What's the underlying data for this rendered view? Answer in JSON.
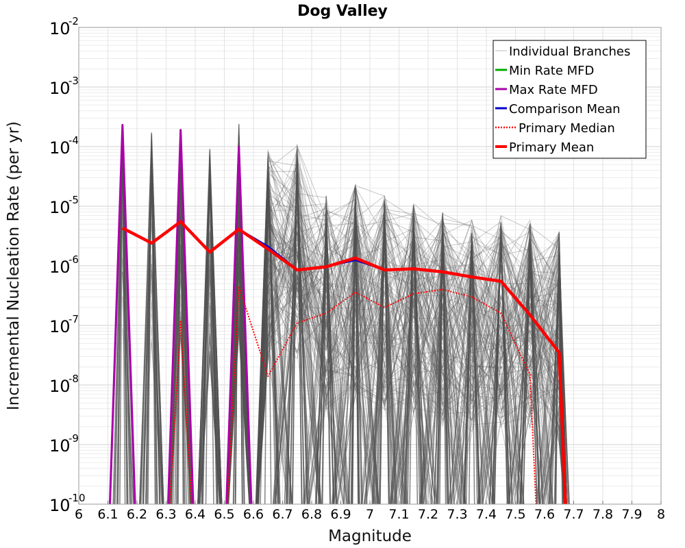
{
  "chart_data": {
    "type": "line",
    "title": "Dog Valley",
    "xlabel": "Magnitude",
    "ylabel": "Incremental Nucleation Rate (per yr)",
    "xlim": [
      6,
      8
    ],
    "ylim": [
      1e-10,
      0.01
    ],
    "yscale": "log",
    "grid": true,
    "legend_position": "top-right",
    "x_ticks": [
      "6",
      "6.1",
      "6.2",
      "6.3",
      "6.4",
      "6.5",
      "6.6",
      "6.7",
      "6.8",
      "6.9",
      "7",
      "7.1",
      "7.2",
      "7.3",
      "7.4",
      "7.5",
      "7.6",
      "7.7",
      "7.8",
      "7.9",
      "8"
    ],
    "y_ticks": [
      {
        "base": "10",
        "exp": "-2"
      },
      {
        "base": "10",
        "exp": "-3"
      },
      {
        "base": "10",
        "exp": "-4"
      },
      {
        "base": "10",
        "exp": "-5"
      },
      {
        "base": "10",
        "exp": "-6"
      },
      {
        "base": "10",
        "exp": "-7"
      },
      {
        "base": "10",
        "exp": "-8"
      },
      {
        "base": "10",
        "exp": "-9"
      },
      {
        "base": "10",
        "exp": "-10"
      }
    ],
    "series": [
      {
        "name": "Individual Branches",
        "color": "#555555",
        "style": "thin",
        "note_values": "many overlapping branch curves; peaks at each bin",
        "peaks": [
          {
            "x": 6.15,
            "y": 0.00022
          },
          {
            "x": 6.25,
            "y": 0.0002
          },
          {
            "x": 6.35,
            "y": 0.0002
          },
          {
            "x": 6.45,
            "y": 0.0001
          },
          {
            "x": 6.55,
            "y": 0.00027
          },
          {
            "x": 6.65,
            "y": 0.0001
          },
          {
            "x": 6.75,
            "y": 0.00011
          },
          {
            "x": 6.85,
            "y": 1.5e-05
          },
          {
            "x": 6.95,
            "y": 2.5e-05
          },
          {
            "x": 7.05,
            "y": 1.5e-05
          },
          {
            "x": 7.15,
            "y": 1.2e-05
          },
          {
            "x": 7.25,
            "y": 8e-06
          },
          {
            "x": 7.35,
            "y": 6e-06
          },
          {
            "x": 7.45,
            "y": 7e-06
          },
          {
            "x": 7.55,
            "y": 6e-06
          },
          {
            "x": 7.65,
            "y": 4e-06
          }
        ]
      },
      {
        "name": "Min Rate MFD",
        "color": "#00aa00",
        "style": "solid",
        "points": []
      },
      {
        "name": "Max Rate MFD",
        "color": "#aa00aa",
        "style": "solid",
        "points": [
          {
            "x": 6.1,
            "y": 1e-11
          },
          {
            "x": 6.15,
            "y": 0.00023
          },
          {
            "x": 6.2,
            "y": 1e-11
          },
          {
            "x": 6.3,
            "y": 1e-11
          },
          {
            "x": 6.35,
            "y": 0.00019
          },
          {
            "x": 6.4,
            "y": 1e-11
          },
          {
            "x": 6.5,
            "y": 1e-11
          },
          {
            "x": 6.55,
            "y": 0.0001
          },
          {
            "x": 6.6,
            "y": 1e-11
          }
        ]
      },
      {
        "name": "Comparison Mean",
        "color": "#0000cc",
        "style": "solid",
        "points": [
          {
            "x": 6.15,
            "y": 4.2e-06
          },
          {
            "x": 6.25,
            "y": 2.4e-06
          },
          {
            "x": 6.35,
            "y": 5.5e-06
          },
          {
            "x": 6.45,
            "y": 1.7e-06
          },
          {
            "x": 6.55,
            "y": 4.1e-06
          },
          {
            "x": 6.65,
            "y": 2.1e-06
          },
          {
            "x": 6.75,
            "y": 8.5e-07
          },
          {
            "x": 6.85,
            "y": 9.8e-07
          },
          {
            "x": 6.95,
            "y": 1.25e-06
          },
          {
            "x": 7.05,
            "y": 8.6e-07
          },
          {
            "x": 7.15,
            "y": 8.9e-07
          },
          {
            "x": 7.25,
            "y": 7.9e-07
          },
          {
            "x": 7.35,
            "y": 6.5e-07
          },
          {
            "x": 7.45,
            "y": 5.5e-07
          },
          {
            "x": 7.55,
            "y": 1.5e-07
          },
          {
            "x": 7.65,
            "y": 3.5e-08
          }
        ]
      },
      {
        "name": "Primary Median",
        "color": "#ff0000",
        "style": "dotted",
        "points": [
          {
            "x": 6.3,
            "y": 1e-11
          },
          {
            "x": 6.35,
            "y": 1.2e-07
          },
          {
            "x": 6.4,
            "y": 1e-11
          },
          {
            "x": 6.5,
            "y": 1e-11
          },
          {
            "x": 6.55,
            "y": 4.5e-07
          },
          {
            "x": 6.65,
            "y": 1.4e-08
          },
          {
            "x": 6.75,
            "y": 1.1e-07
          },
          {
            "x": 6.85,
            "y": 1.6e-07
          },
          {
            "x": 6.95,
            "y": 3.6e-07
          },
          {
            "x": 7.05,
            "y": 2e-07
          },
          {
            "x": 7.15,
            "y": 3.4e-07
          },
          {
            "x": 7.25,
            "y": 4e-07
          },
          {
            "x": 7.35,
            "y": 3e-07
          },
          {
            "x": 7.45,
            "y": 1.6e-07
          },
          {
            "x": 7.55,
            "y": 1.5e-08
          },
          {
            "x": 7.58,
            "y": 1e-11
          }
        ]
      },
      {
        "name": "Primary Mean",
        "color": "#ff0000",
        "style": "thick",
        "points": [
          {
            "x": 6.15,
            "y": 4.3e-06
          },
          {
            "x": 6.25,
            "y": 2.4e-06
          },
          {
            "x": 6.35,
            "y": 5.5e-06
          },
          {
            "x": 6.45,
            "y": 1.7e-06
          },
          {
            "x": 6.55,
            "y": 4.1e-06
          },
          {
            "x": 6.65,
            "y": 1.9e-06
          },
          {
            "x": 6.75,
            "y": 8.5e-07
          },
          {
            "x": 6.85,
            "y": 9.6e-07
          },
          {
            "x": 6.95,
            "y": 1.35e-06
          },
          {
            "x": 7.05,
            "y": 8.5e-07
          },
          {
            "x": 7.15,
            "y": 8.9e-07
          },
          {
            "x": 7.25,
            "y": 7.9e-07
          },
          {
            "x": 7.35,
            "y": 6.5e-07
          },
          {
            "x": 7.45,
            "y": 5.5e-07
          },
          {
            "x": 7.55,
            "y": 1.5e-07
          },
          {
            "x": 7.65,
            "y": 3.5e-08
          },
          {
            "x": 7.68,
            "y": 1e-11
          }
        ]
      }
    ],
    "legend": [
      {
        "label": "Individual Branches",
        "color": "#bbbbbb",
        "style": "thin"
      },
      {
        "label": "Min Rate MFD",
        "color": "#00aa00",
        "style": "solid"
      },
      {
        "label": "Max Rate MFD",
        "color": "#aa00aa",
        "style": "solid"
      },
      {
        "label": "Comparison Mean",
        "color": "#0000cc",
        "style": "solid"
      },
      {
        "label": "Primary Median",
        "color": "#ff0000",
        "style": "dotted"
      },
      {
        "label": "Primary Mean",
        "color": "#ff0000",
        "style": "thick"
      }
    ]
  }
}
